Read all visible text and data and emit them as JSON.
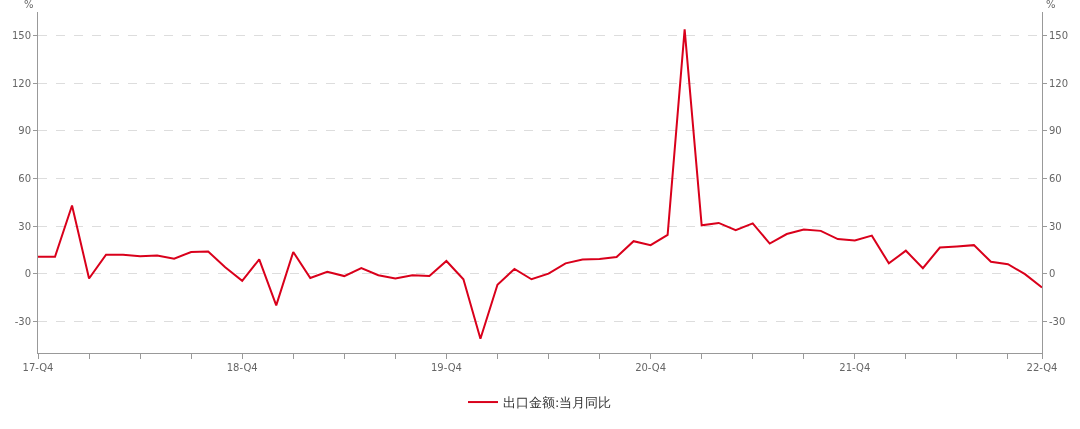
{
  "chart_data": {
    "type": "line",
    "ylabel": "%",
    "y2label": "%",
    "categories": [
      "17-Q4",
      null,
      null,
      null,
      null,
      null,
      null,
      null,
      null,
      null,
      null,
      null,
      "18-Q4",
      null,
      null,
      null,
      null,
      null,
      null,
      null,
      null,
      null,
      null,
      null,
      "19-Q4",
      null,
      null,
      null,
      null,
      null,
      null,
      null,
      null,
      null,
      null,
      null,
      "20-Q4",
      null,
      null,
      null,
      null,
      null,
      null,
      null,
      null,
      null,
      null,
      null,
      "21-Q4",
      null,
      null,
      null,
      null,
      null,
      null,
      null,
      null,
      null,
      null,
      "22-Q4"
    ],
    "series": [
      {
        "name": "出口金额:当月同比",
        "color": "#d9001b",
        "values": [
          10.7,
          10.7,
          43,
          -3,
          12,
          12,
          11,
          11.5,
          9.5,
          13.7,
          14,
          4,
          -4.5,
          9,
          -20,
          13.7,
          -2.7,
          1.2,
          -1.5,
          3.5,
          -1,
          -3,
          -1,
          -1.5,
          8,
          -3.5,
          -41,
          -7,
          3,
          -3.5,
          0,
          6.5,
          9,
          9.3,
          10.5,
          20.5,
          18,
          24.5,
          154,
          30.5,
          32,
          27.5,
          31.7,
          19,
          25,
          27.8,
          27,
          21.8,
          21,
          24,
          6.5,
          14.5,
          3.5,
          16.5,
          17.2,
          18,
          7.5,
          6,
          -0.3,
          -8.7
        ]
      }
    ],
    "ylim": [
      -50,
      165
    ],
    "yticks": [
      -30,
      0,
      30,
      60,
      90,
      120,
      150
    ],
    "y2lim": [
      -50,
      165
    ],
    "y2ticks": [
      -30,
      0,
      30,
      60,
      90,
      120,
      150
    ],
    "grid": "y",
    "legend": "bottom",
    "marker": "none",
    "line_style": "solid"
  }
}
